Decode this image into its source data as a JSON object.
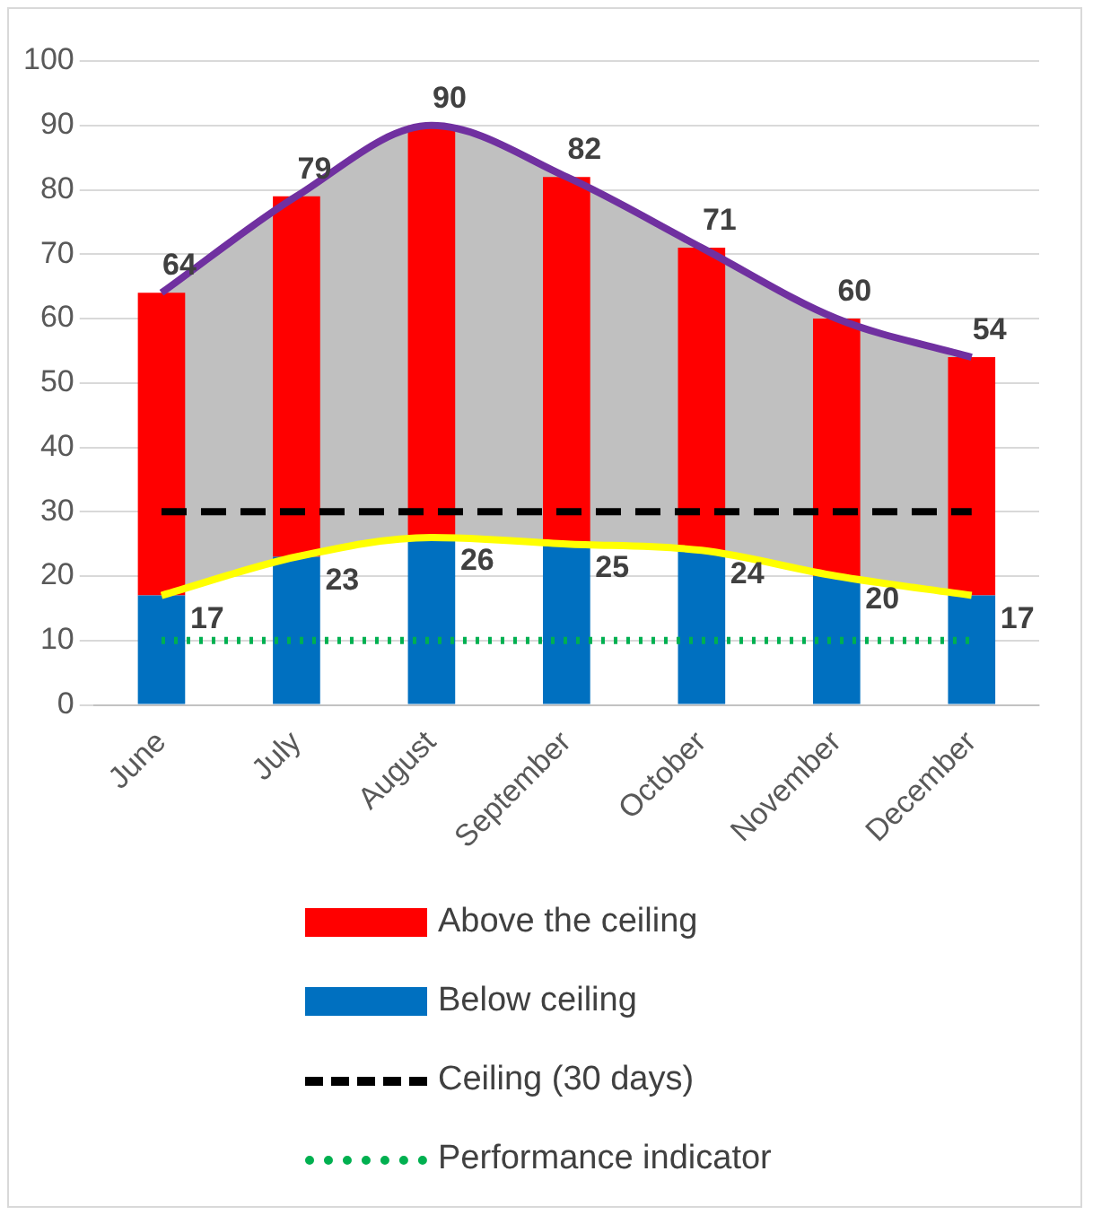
{
  "chart_data": {
    "type": "bar",
    "stacked": true,
    "categories": [
      "June",
      "July",
      "August",
      "September",
      "October",
      "November",
      "December"
    ],
    "ylim": [
      0,
      100
    ],
    "yticks": [
      0,
      10,
      20,
      30,
      40,
      50,
      60,
      70,
      80,
      90,
      100
    ],
    "grid": "y",
    "legend": "bottom",
    "totals": [
      "64",
      "79",
      "90",
      "82",
      "71",
      "60",
      "54"
    ],
    "series": [
      {
        "name": "Below ceiling",
        "color": "#0070c0",
        "values": [
          17,
          23,
          26,
          25,
          24,
          20,
          17
        ],
        "value_labels": [
          "17",
          "23",
          "26",
          "25",
          "24",
          "20",
          "17"
        ]
      },
      {
        "name": "Above the ceiling",
        "color": "#ff0000",
        "values": [
          47,
          56,
          64,
          57,
          47,
          40,
          37
        ]
      },
      {
        "name": "Ceiling (30 days)",
        "type": "line",
        "color": "#000000",
        "line_style": "dashed",
        "marker": "none",
        "values": [
          30,
          30,
          30,
          30,
          30,
          30,
          30
        ]
      },
      {
        "name": "Performance indicator",
        "type": "line",
        "color": "#00b050",
        "line_style": "dotted",
        "marker": "none",
        "values": [
          10,
          10,
          10,
          10,
          10,
          10,
          10
        ]
      },
      {
        "type": "line",
        "color": "#7030a0",
        "marker": "none",
        "values": [
          64,
          79,
          90,
          82,
          71,
          60,
          54
        ],
        "lower": [
          17,
          23,
          26,
          25,
          24,
          20,
          17
        ],
        "upper": [
          64,
          79,
          90,
          82,
          71,
          60,
          54
        ]
      },
      {
        "type": "line",
        "color": "#ffff00",
        "marker": "none",
        "values": [
          17,
          23,
          26,
          25,
          24,
          20,
          17
        ]
      }
    ]
  }
}
